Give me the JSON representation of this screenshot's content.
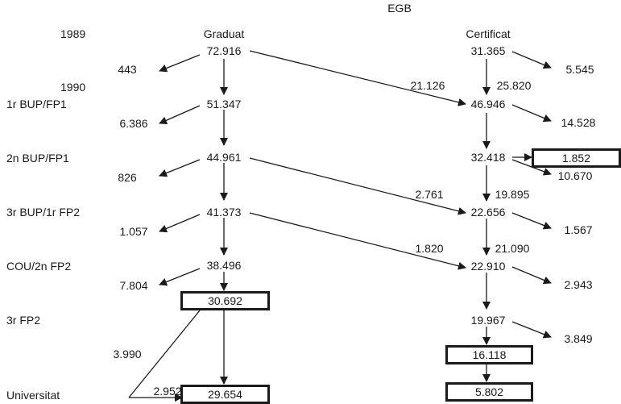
{
  "header": {
    "top": "EGB",
    "left_col": "Graduat",
    "right_col": "Certificat"
  },
  "rows": {
    "y1989": "1989",
    "y1990": "1990",
    "r1": "1r BUP/FP1",
    "r2": "2n BUP/FP1",
    "r3": "3r BUP/1r FP2",
    "r4": "COU/2n FP2",
    "r5": "3r FP2",
    "r6": "Universitat"
  },
  "graduat": {
    "n1989": "72.916",
    "n1": "51.347",
    "n2": "44.961",
    "n3": "41.373",
    "n4": "38.496",
    "n5": "30.692",
    "n6": "29.654",
    "out1989": "443",
    "out1": "6.386",
    "out2": "826",
    "out3": "1.057",
    "out4": "7.804",
    "side_a": "3.990",
    "side_b": "2.952"
  },
  "certificat": {
    "n1989": "31.365",
    "n1990_flow": "25.820",
    "n1": "46.946",
    "n2": "32.418",
    "n3": "22.656",
    "n4": "22.910",
    "n5": "19.967",
    "n6a": "16.118",
    "n6": "5.802",
    "out1989": "5.545",
    "out1": "14.528",
    "out2_box": "1.852",
    "out2": "10.670",
    "f3": "19.895",
    "out3": "1.567",
    "f4": "21.090",
    "out4": "2.943",
    "out5": "3.849"
  },
  "transfers": {
    "t1": "21.126",
    "t2": "2.761",
    "t3": "1.820"
  }
}
